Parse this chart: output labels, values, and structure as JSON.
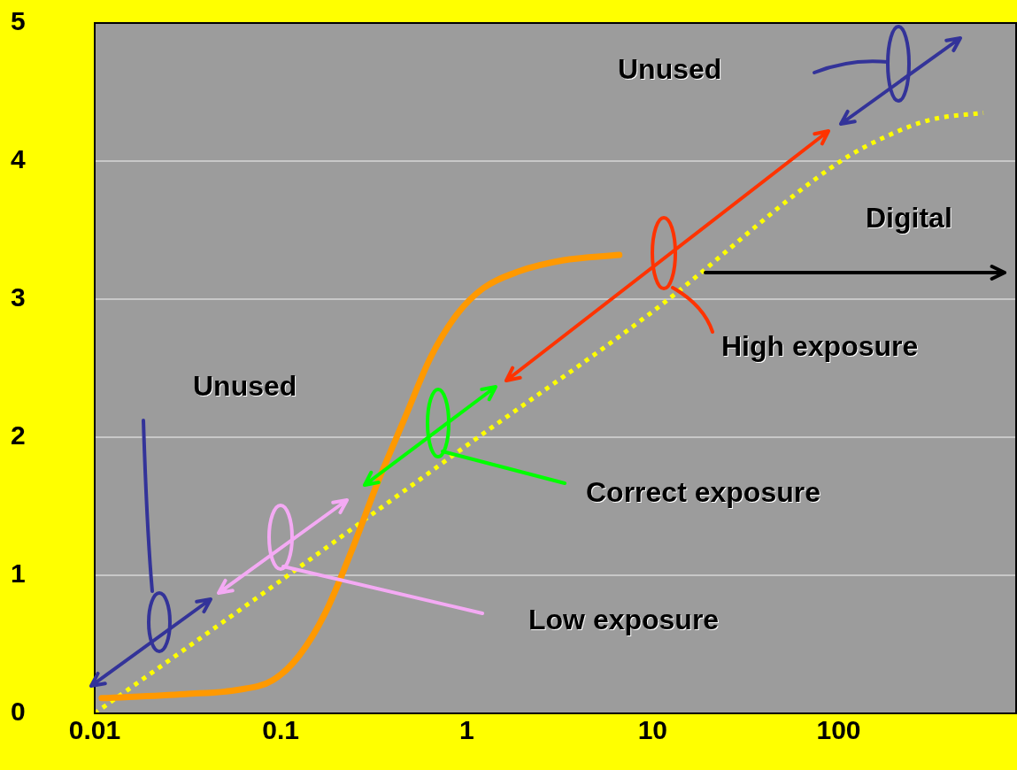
{
  "chart_data": {
    "type": "line",
    "log": "x",
    "xlim": [
      0.01,
      900
    ],
    "xticks": [
      0.01,
      0.1,
      1,
      10,
      100
    ],
    "ylim": [
      0,
      5
    ],
    "yticks": [
      0,
      1,
      2,
      3,
      4,
      5
    ],
    "grid": "y",
    "legend": false,
    "marker": "none",
    "series": [
      {
        "color": "#ff9900",
        "line_style": "solid",
        "x": [
          0.0109,
          0.0306,
          0.0587,
          0.0907,
          0.126,
          0.174,
          0.241,
          0.334,
          0.462,
          0.641,
          0.887,
          1.23,
          1.9,
          3.27,
          6.62
        ],
        "values": [
          0.11,
          0.14,
          0.17,
          0.24,
          0.42,
          0.73,
          1.18,
          1.68,
          2.13,
          2.58,
          2.89,
          3.08,
          3.2,
          3.28,
          3.32
        ]
      },
      {
        "color": "#ffff00",
        "line_style": "dotted",
        "x": [
          0.01,
          0.0907,
          1,
          10,
          100,
          181,
          313,
          600
        ],
        "values": [
          0,
          0.92,
          1.94,
          2.91,
          3.99,
          4.18,
          4.3,
          4.35
        ]
      }
    ],
    "annotations": [
      "Unused",
      "Digital",
      "High exposure",
      "Unused",
      "Correct exposure",
      "Low exposure"
    ]
  }
}
